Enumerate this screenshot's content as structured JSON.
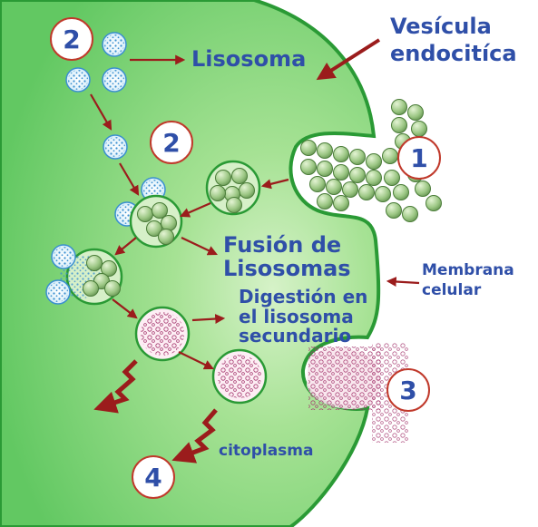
{
  "labels": {
    "lisosoma": "Lisosoma",
    "vesicula_line1": "Vesícula",
    "vesicula_line2": "endocitíca",
    "fusion_line1": "Fusión de",
    "fusion_line2": "Lisosomas",
    "membrana_line1": "Membrana",
    "membrana_line2": "celular",
    "digestion_line1": "Digestión en",
    "digestion_line2": "el lisosoma",
    "digestion_line3": "secundario",
    "citoplasma": "citoplasma"
  },
  "steps": {
    "one": "1",
    "two_top": "2",
    "two_mid": "2",
    "three": "3",
    "four": "4"
  },
  "colors": {
    "cytoplasm": "#6fce6f",
    "membrane": "#2a9a35",
    "arrow": "#9b1c1c",
    "text": "#2f4fa8",
    "badge_border": "#c0392b"
  }
}
